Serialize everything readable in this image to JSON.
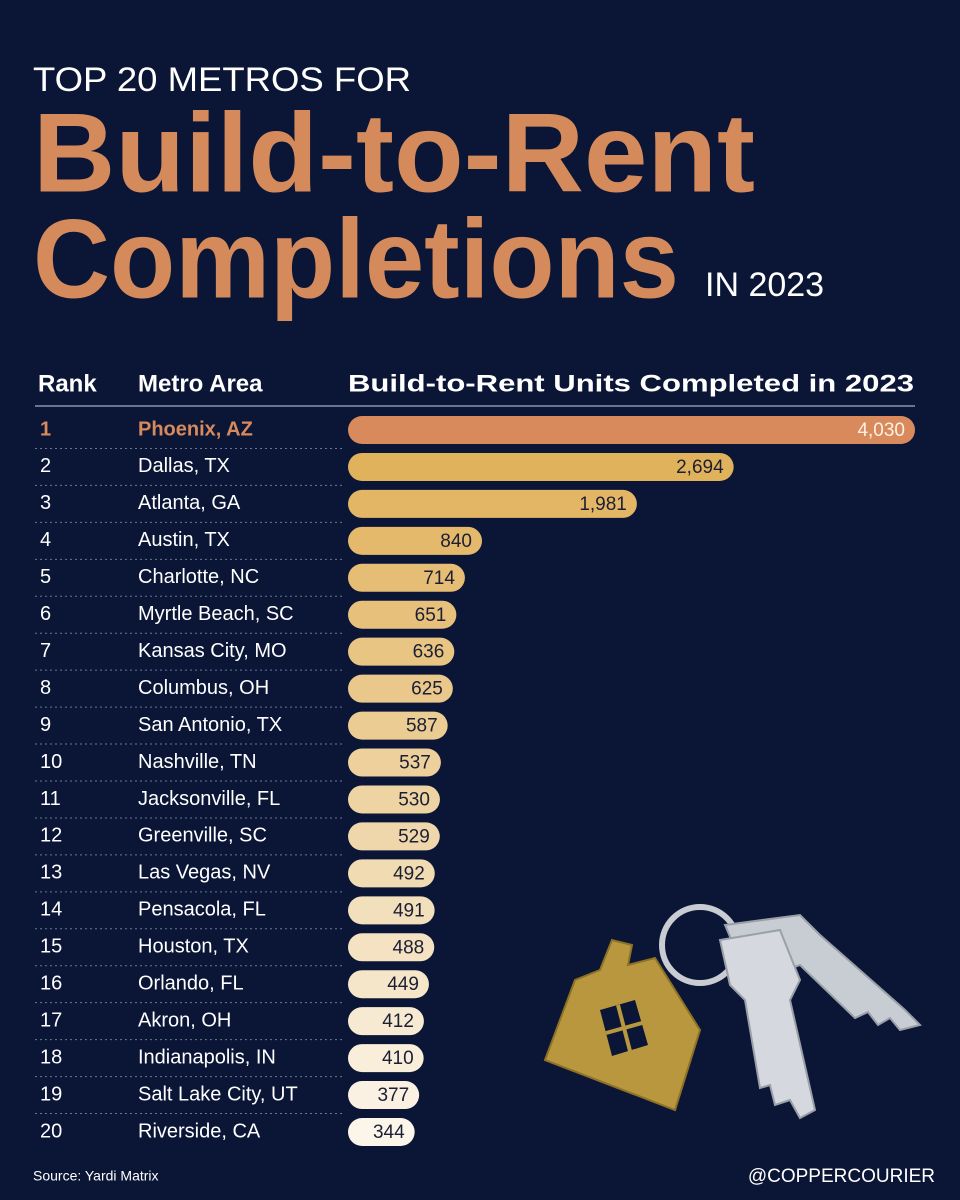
{
  "chart_data": {
    "type": "bar",
    "kicker": "TOP 20 METROS FOR",
    "title": [
      "Build-to-Rent",
      "Completions"
    ],
    "title_suffix": "IN 2023",
    "column_headers": [
      "Rank",
      "Metro Area",
      "Build-to-Rent Units Completed in 2023"
    ],
    "ranks": [
      1,
      2,
      3,
      4,
      5,
      6,
      7,
      8,
      9,
      10,
      11,
      12,
      13,
      14,
      15,
      16,
      17,
      18,
      19,
      20
    ],
    "categories": [
      "Phoenix, AZ",
      "Dallas, TX",
      "Atlanta, GA",
      "Austin, TX",
      "Charlotte, NC",
      "Myrtle Beach, SC",
      "Kansas City, MO",
      "Columbus, OH",
      "San Antonio, TX",
      "Nashville, TN",
      "Jacksonville, FL",
      "Greenville, SC",
      "Las Vegas, NV",
      "Pensacola, FL",
      "Houston, TX",
      "Orlando, FL",
      "Akron, OH",
      "Indianapolis, IN",
      "Salt Lake City, UT",
      "Riverside, CA"
    ],
    "values": [
      4030,
      2694,
      1981,
      840,
      714,
      651,
      636,
      625,
      587,
      537,
      530,
      529,
      492,
      491,
      488,
      449,
      412,
      410,
      377,
      344
    ],
    "value_labels": [
      "4,030",
      "2,694",
      "1,981",
      "840",
      "714",
      "651",
      "636",
      "625",
      "587",
      "537",
      "530",
      "529",
      "492",
      "491",
      "488",
      "449",
      "412",
      "410",
      "377",
      "344"
    ],
    "highlight_color": "#d88a5c",
    "gradient": [
      "#e1b25c",
      "#fbf5ea"
    ],
    "source": "Source: Yardi Matrix",
    "credit": "@COPPERCOURIER"
  }
}
